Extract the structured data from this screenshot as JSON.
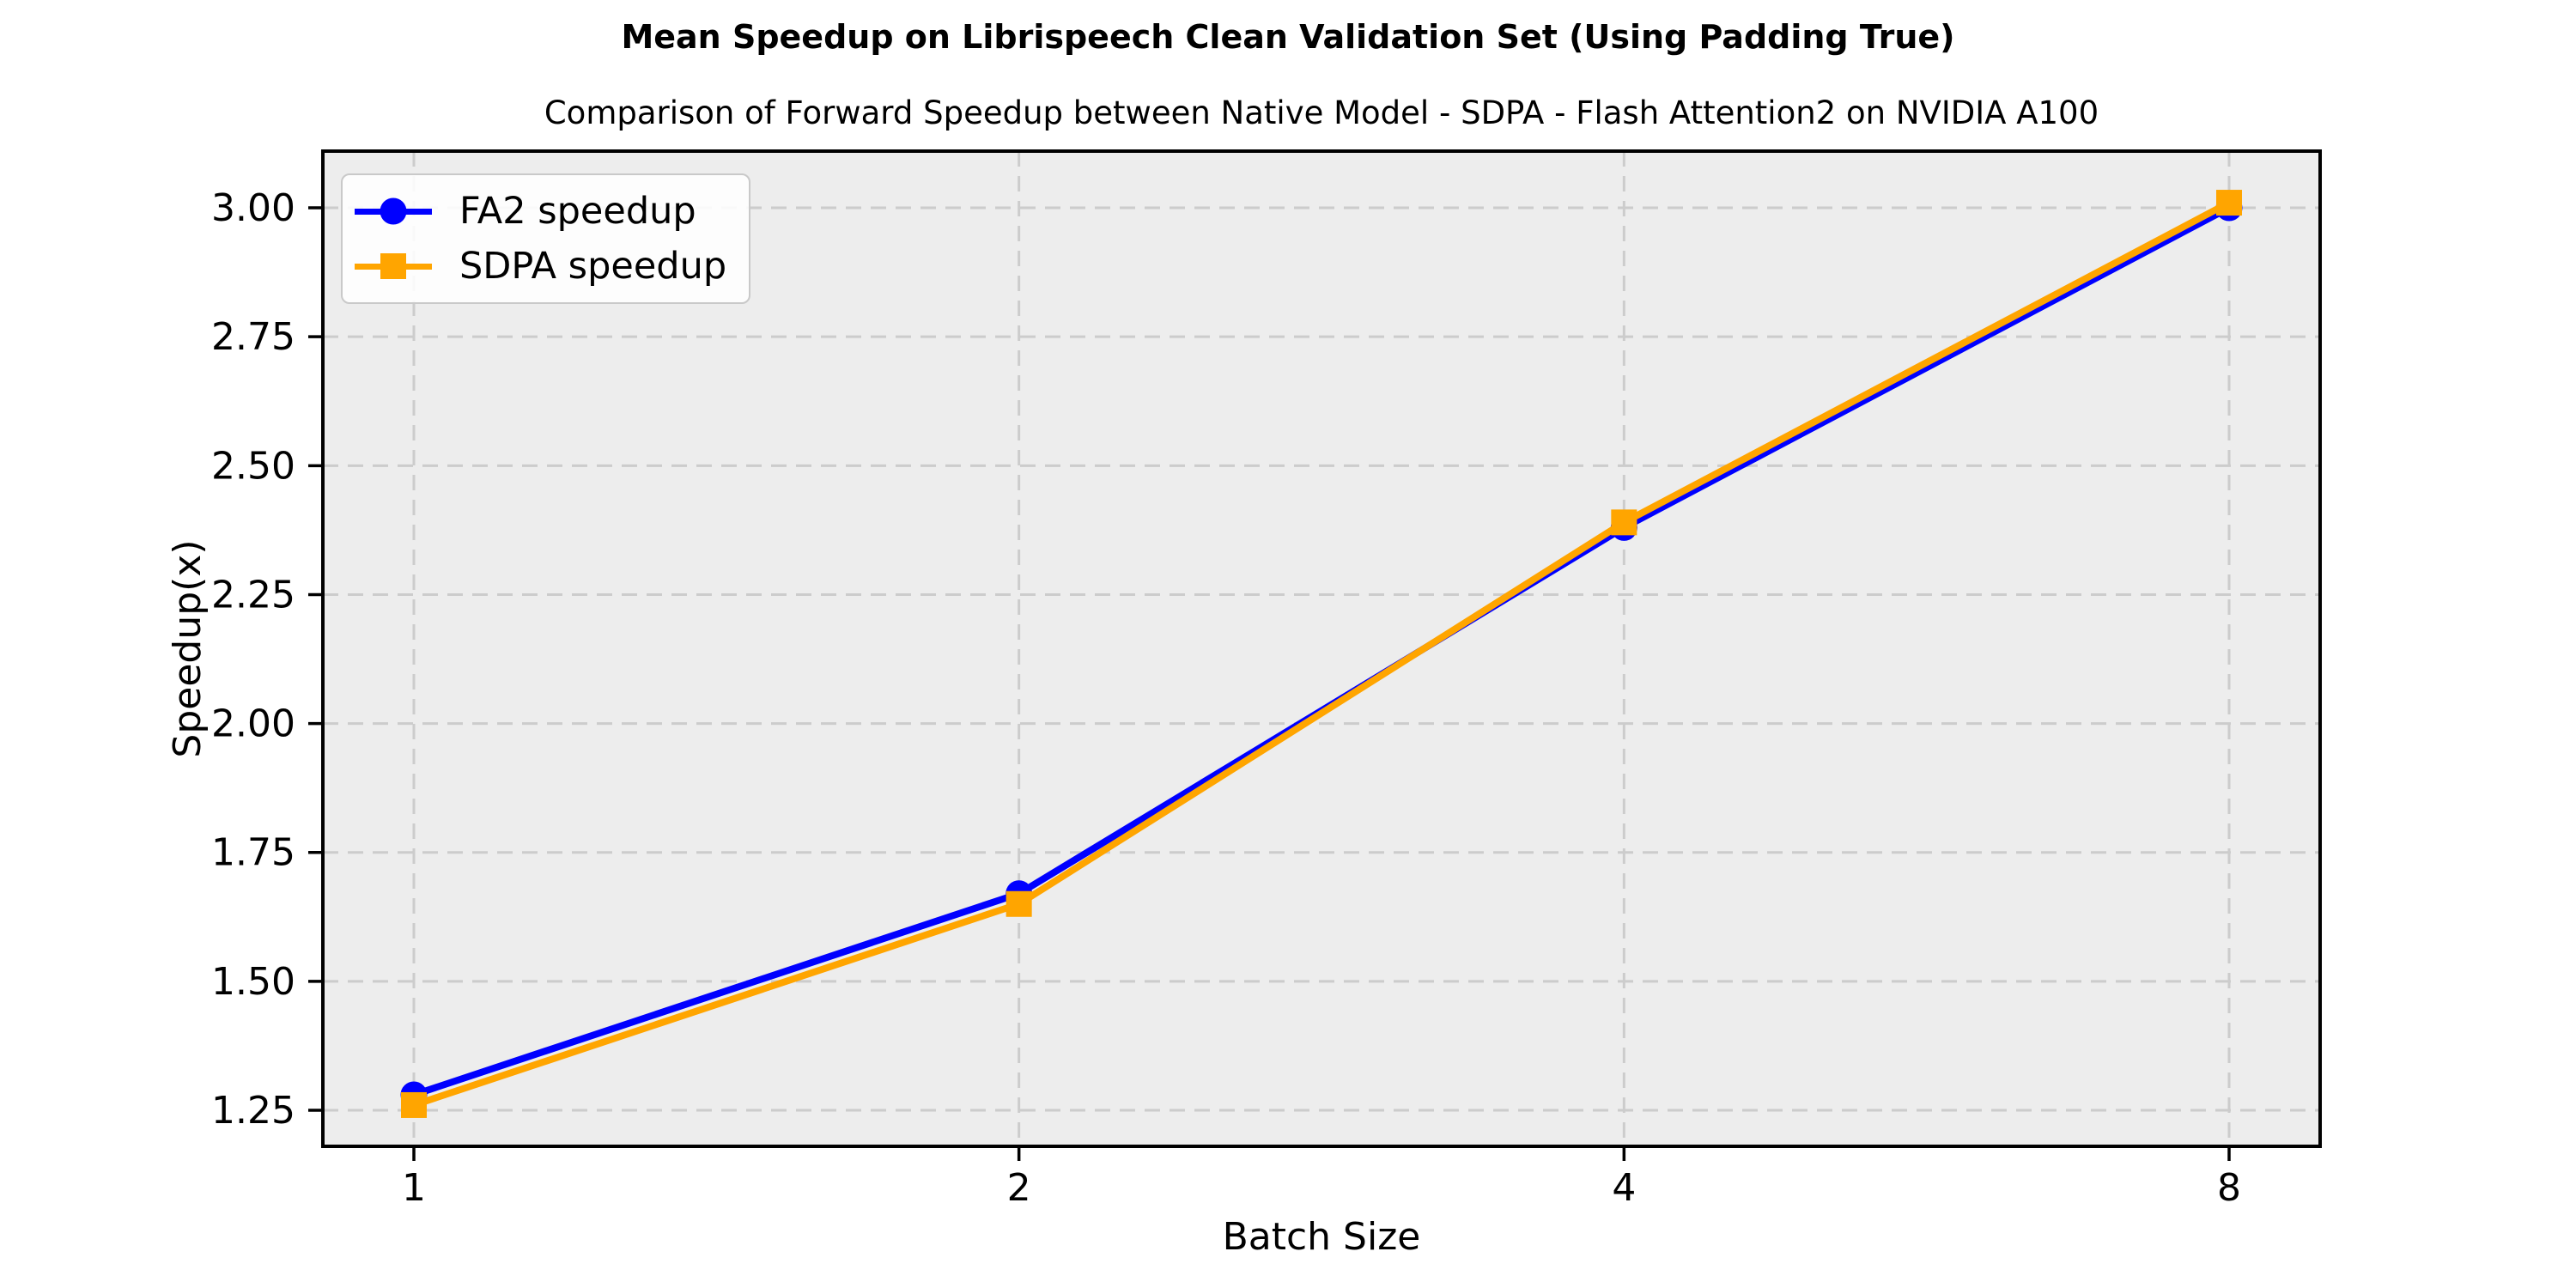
{
  "figure": {
    "title": "Mean Speedup on Librispeech Clean Validation Set (Using Padding True)",
    "subtitle": "Comparison of Forward Speedup between Native Model - SDPA - Flash Attention2 on NVIDIA A100"
  },
  "chart_data": {
    "type": "line",
    "title": "Mean Speedup on Librispeech Clean Validation Set (Using Padding True)",
    "subtitle": "Comparison of Forward Speedup between Native Model - SDPA - Flash Attention2 on NVIDIA A100",
    "xlabel": "Batch Size",
    "ylabel": "Speedup(x)",
    "categories": [
      "1",
      "2",
      "4",
      "8"
    ],
    "series": [
      {
        "name": "FA2 speedup",
        "color": "#0000ff",
        "marker": "circle",
        "values": [
          1.28,
          1.67,
          2.38,
          3.0
        ]
      },
      {
        "name": "SDPA speedup",
        "color": "#ffa500",
        "marker": "square",
        "values": [
          1.26,
          1.65,
          2.39,
          3.01
        ]
      }
    ],
    "yticks": [
      1.25,
      1.5,
      1.75,
      2.0,
      2.25,
      2.5,
      2.75,
      3.0
    ],
    "ytick_labels": [
      "1.25",
      "1.50",
      "1.75",
      "2.00",
      "2.25",
      "2.50",
      "2.75",
      "3.00"
    ],
    "ylim": [
      1.18,
      3.11
    ],
    "x_scale": "categorical",
    "grid": {
      "on": true,
      "style": "dashed",
      "color": "#cccccc"
    },
    "plot_background": "#ededed",
    "axis_color": "#000000",
    "legend": {
      "position": "upper left",
      "entries": [
        "FA2 speedup",
        "SDPA speedup"
      ]
    }
  }
}
